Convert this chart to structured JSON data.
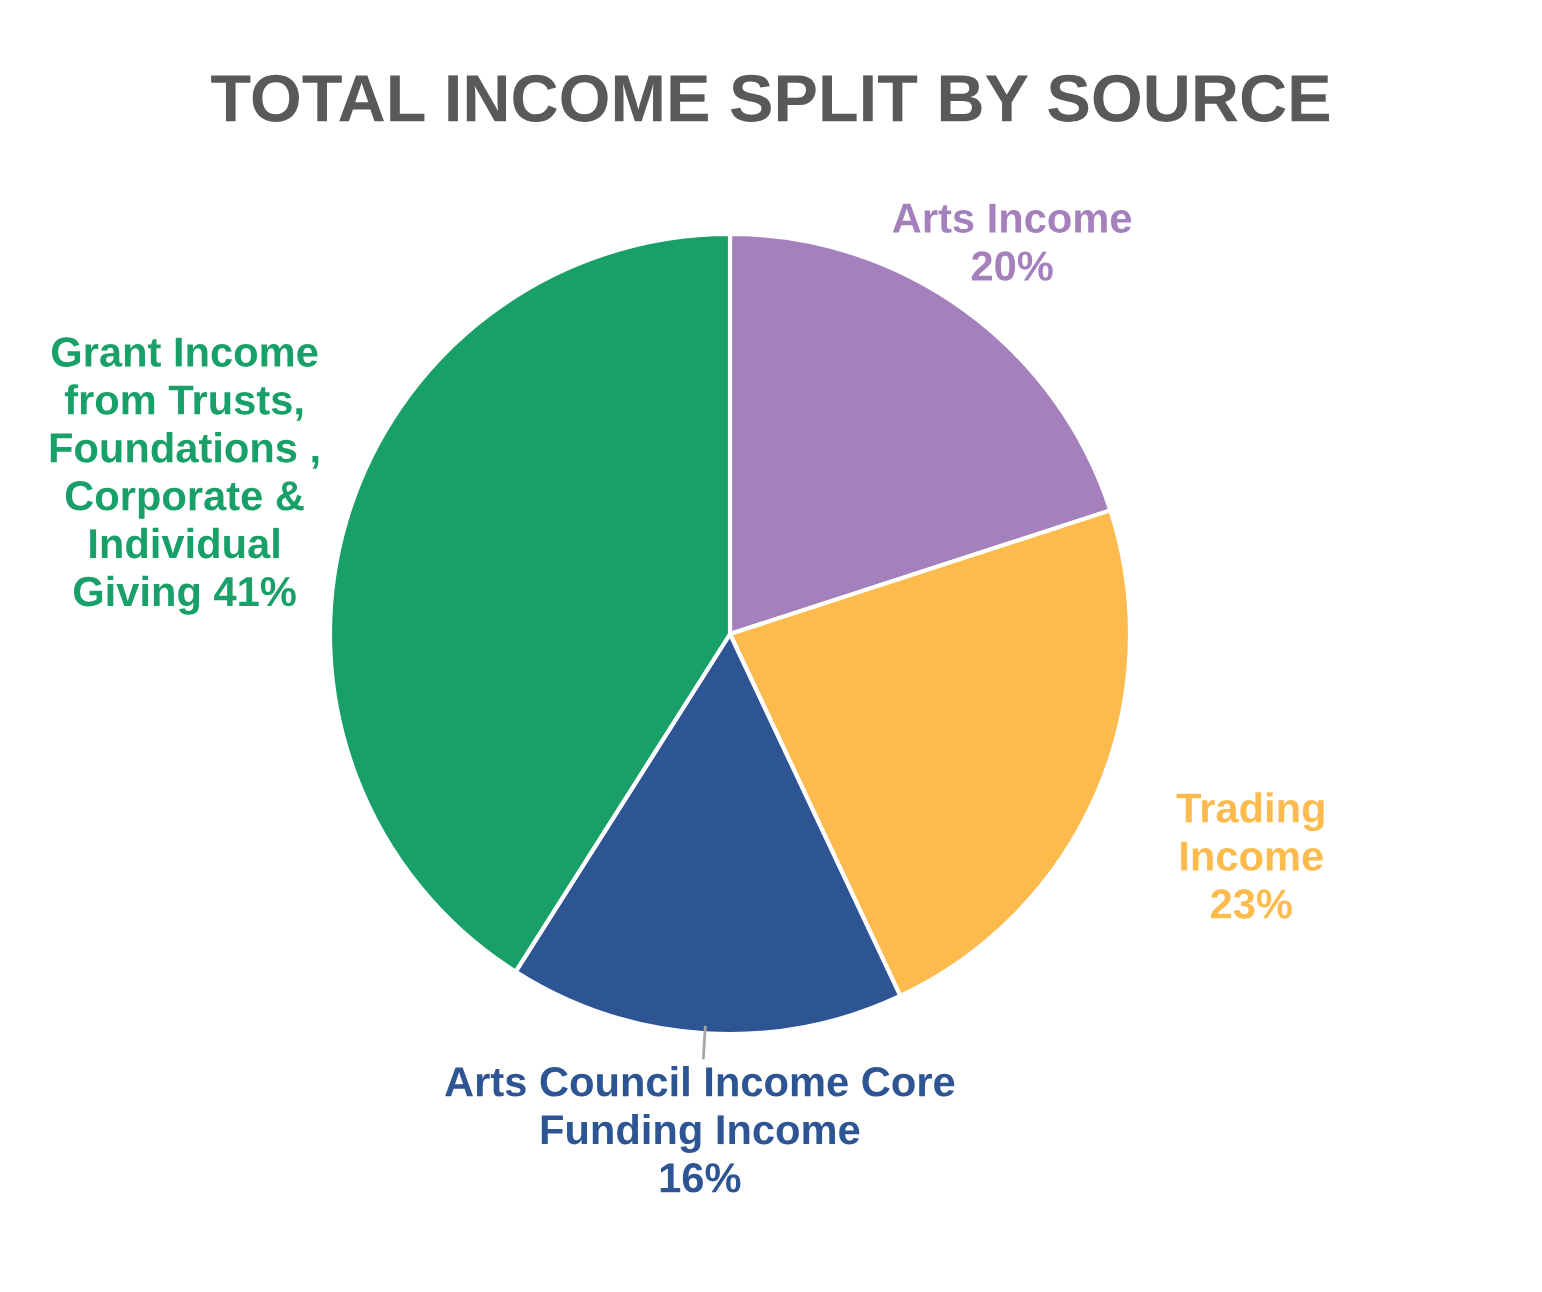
{
  "chart_data": {
    "type": "pie",
    "title": "TOTAL INCOME SPLIT BY SOURCE",
    "categories": [
      "Arts Income",
      "Trading Income",
      "Arts Council Income Core Funding Income",
      "Grant Income from Trusts, Foundations , Corporate & Individual Giving"
    ],
    "values": [
      20,
      23,
      16,
      41
    ],
    "colors": [
      "#a481bd",
      "#fdbb4d",
      "#2e5593",
      "#18a068"
    ],
    "value_labels": [
      "20%",
      "23%",
      "16%",
      "41%"
    ]
  }
}
